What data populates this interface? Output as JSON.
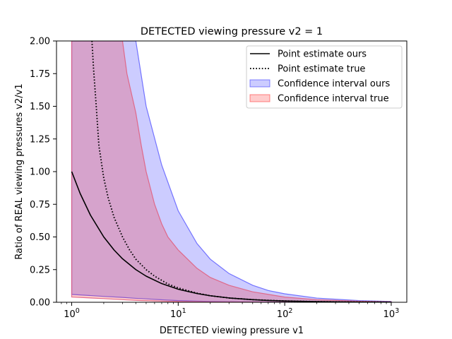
{
  "chart_data": {
    "type": "line",
    "title": "DETECTED viewing pressure v2 = 1",
    "xlabel": "DETECTED viewing pressure v1",
    "ylabel": "Ratio of REAL viewing pressures v2/v1",
    "xscale": "log",
    "xlim": [
      0.72,
      1400
    ],
    "ylim": [
      0,
      2.0
    ],
    "x_ticks": [
      {
        "value": 1,
        "base": "10",
        "exp": "0"
      },
      {
        "value": 10,
        "base": "10",
        "exp": "1"
      },
      {
        "value": 100,
        "base": "10",
        "exp": "2"
      },
      {
        "value": 1000,
        "base": "10",
        "exp": "3"
      }
    ],
    "y_ticks": [
      "0.00",
      "0.25",
      "0.50",
      "0.75",
      "1.00",
      "1.25",
      "1.50",
      "1.75",
      "2.00"
    ],
    "grid": false,
    "legend_position": "top-right",
    "legend": [
      {
        "label": "Point estimate ours",
        "kind": "line-solid",
        "color": "#000000"
      },
      {
        "label": "Point estimate true",
        "kind": "line-dotted",
        "color": "#000000"
      },
      {
        "label": "Confidence interval ours",
        "kind": "patch",
        "color": "#0000ff"
      },
      {
        "label": "Confidence interval true",
        "kind": "patch",
        "color": "#ff0000"
      }
    ],
    "series": [
      {
        "name": "Point estimate ours",
        "style": "solid",
        "color": "#000000",
        "x": [
          1,
          1.2,
          1.5,
          2,
          2.5,
          3,
          4,
          5,
          7,
          10,
          15,
          20,
          30,
          50,
          70,
          100,
          200,
          500,
          1000
        ],
        "y": [
          1.0,
          0.833,
          0.667,
          0.5,
          0.4,
          0.333,
          0.25,
          0.2,
          0.143,
          0.1,
          0.067,
          0.05,
          0.033,
          0.02,
          0.014,
          0.01,
          0.005,
          0.002,
          0.001
        ]
      },
      {
        "name": "Point estimate true",
        "style": "dotted",
        "color": "#000000",
        "x": [
          1.55,
          1.6,
          1.7,
          1.8,
          2.0,
          2.2,
          2.5,
          3.0,
          3.5,
          4.0,
          5.0,
          6.0,
          8.0,
          10,
          15,
          20,
          30,
          50,
          100,
          200,
          500,
          1000
        ],
        "y": [
          2.0,
          1.8,
          1.5,
          1.2,
          0.95,
          0.8,
          0.65,
          0.5,
          0.4,
          0.33,
          0.25,
          0.2,
          0.14,
          0.11,
          0.07,
          0.05,
          0.033,
          0.02,
          0.01,
          0.005,
          0.002,
          0.001
        ]
      }
    ],
    "bands": [
      {
        "name": "Confidence interval ours",
        "color": "#0000ff",
        "opacity": 0.2,
        "edge_color": "#6666ff",
        "x": [
          1,
          2,
          3,
          4,
          5,
          7,
          10,
          15,
          20,
          30,
          50,
          70,
          100,
          200,
          500,
          1000
        ],
        "upper": [
          2.0,
          2.0,
          2.0,
          2.0,
          1.5,
          1.05,
          0.7,
          0.45,
          0.33,
          0.22,
          0.13,
          0.09,
          0.065,
          0.032,
          0.013,
          0.0065
        ],
        "lower": [
          0.06,
          0.045,
          0.037,
          0.03,
          0.026,
          0.019,
          0.013,
          0.009,
          0.0065,
          0.0045,
          0.0027,
          0.0019,
          0.0013,
          0.00065,
          0.00026,
          0.00013
        ]
      },
      {
        "name": "Confidence interval true",
        "color": "#ff0000",
        "opacity": 0.2,
        "edge_color": "#e06080",
        "x": [
          1,
          2,
          3,
          3.3,
          4,
          4.5,
          5,
          6,
          7,
          8,
          10,
          15,
          20,
          30,
          50,
          100,
          200,
          500,
          1000
        ],
        "upper": [
          2.0,
          2.0,
          2.0,
          1.75,
          1.45,
          1.2,
          1.0,
          0.75,
          0.6,
          0.5,
          0.4,
          0.26,
          0.19,
          0.13,
          0.08,
          0.04,
          0.02,
          0.008,
          0.004
        ],
        "lower": [
          0.04,
          0.028,
          0.02,
          0.018,
          0.015,
          0.013,
          0.012,
          0.01,
          0.0085,
          0.0075,
          0.006,
          0.004,
          0.003,
          0.002,
          0.0012,
          0.0006,
          0.0003,
          0.00012,
          6e-05
        ]
      }
    ]
  }
}
